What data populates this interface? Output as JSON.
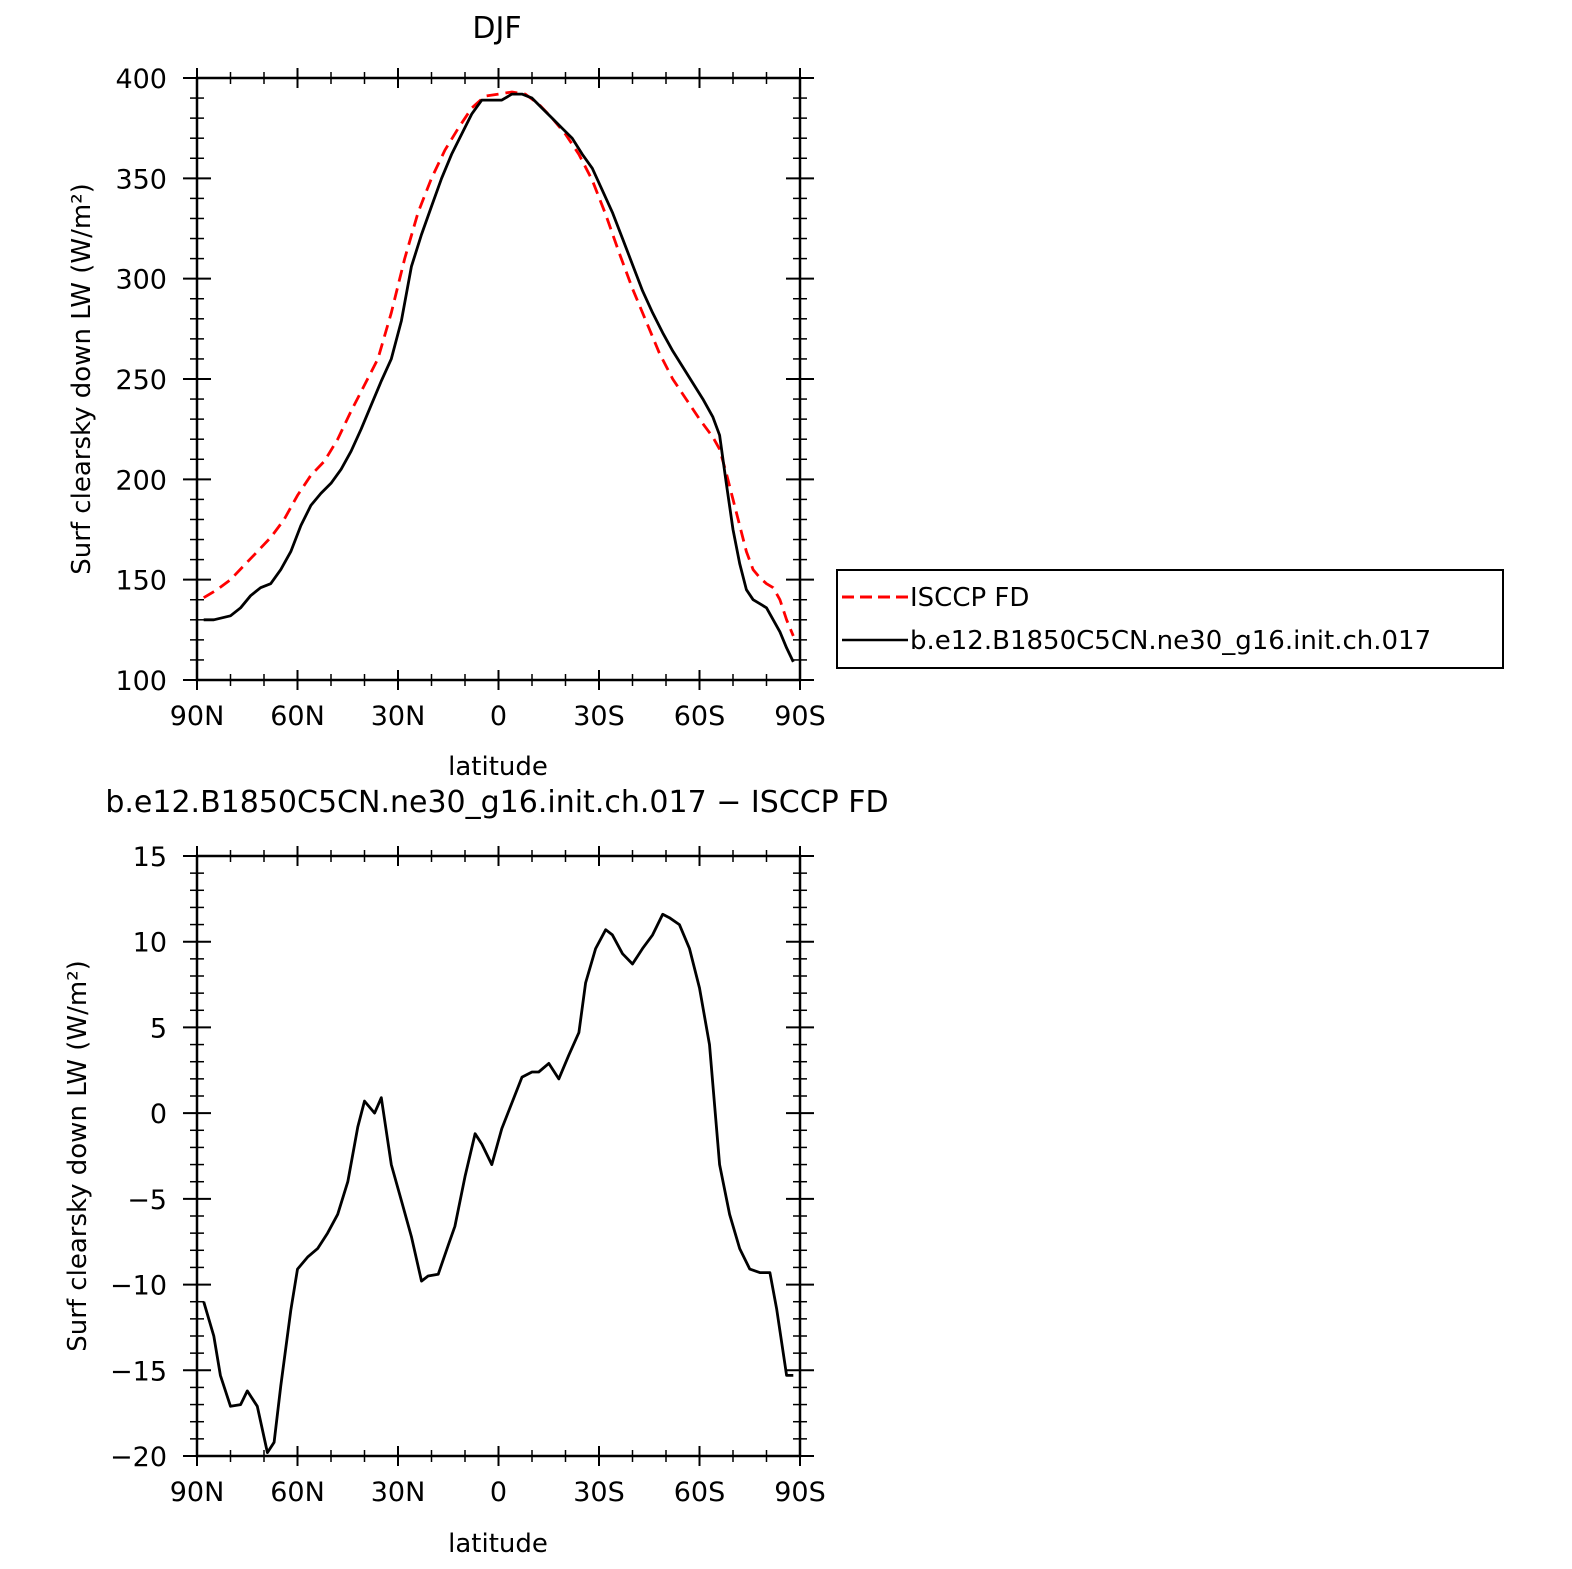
{
  "chart_data": [
    {
      "type": "line",
      "title": "DJF",
      "xlabel": "latitude",
      "ylabel": "Surf clearsky down LW (W/m²)",
      "xlim": [
        90,
        -90
      ],
      "ylim": [
        100,
        400
      ],
      "x_tick_labels": [
        "90N",
        "60N",
        "30N",
        "0",
        "30S",
        "60S",
        "90S"
      ],
      "x_ticks": [
        90,
        60,
        30,
        0,
        -30,
        -60,
        -90
      ],
      "y_ticks": [
        100,
        150,
        200,
        250,
        300,
        350,
        400
      ],
      "y_tick_labels": [
        "100",
        "150",
        "200",
        "250",
        "300",
        "350",
        "400"
      ],
      "grid": false,
      "legend_position": "right",
      "series": [
        {
          "name": "ISCCP FD",
          "color": "#ff0000",
          "style": "dashed",
          "x": [
            88,
            84,
            80,
            76,
            72,
            68,
            64,
            60,
            56,
            52,
            48,
            44,
            40,
            36,
            32,
            28,
            24,
            20,
            16,
            12,
            8,
            4,
            0,
            -4,
            -8,
            -12,
            -16,
            -20,
            -24,
            -28,
            -32,
            -36,
            -40,
            -44,
            -48,
            -52,
            -56,
            -60,
            -64,
            -66,
            -68,
            -70,
            -72,
            -74,
            -76,
            -78,
            -80,
            -82,
            -84,
            -86,
            -88
          ],
          "values": [
            141,
            145,
            150,
            157,
            164,
            171,
            180,
            192,
            202,
            209,
            220,
            234,
            247,
            260,
            283,
            310,
            333,
            350,
            364,
            375,
            385,
            391,
            392,
            393,
            392,
            387,
            380,
            372,
            362,
            349,
            332,
            313,
            295,
            279,
            263,
            250,
            240,
            230,
            221,
            215,
            203,
            190,
            177,
            164,
            155,
            151,
            148,
            146,
            140,
            130,
            122
          ]
        },
        {
          "name": "b.e12.B1850C5CN.ne30_g16.init.ch.017",
          "color": "#000000",
          "style": "solid",
          "x": [
            88,
            85,
            80,
            77,
            74,
            71,
            68,
            65,
            62,
            59,
            56,
            53,
            50,
            47,
            44,
            41,
            38,
            35,
            32,
            29,
            26,
            23,
            20,
            17,
            14,
            11,
            8,
            5,
            2,
            -1,
            -4,
            -7,
            -10,
            -13,
            -16,
            -19,
            -22,
            -25,
            -28,
            -31,
            -34,
            -37,
            -40,
            -43,
            -46,
            -49,
            -52,
            -55,
            -58,
            -61,
            -64,
            -66,
            -68,
            -70,
            -72,
            -74,
            -76,
            -78,
            -80,
            -82,
            -84,
            -86,
            -88
          ],
          "values": [
            130,
            130,
            132,
            136,
            142,
            146,
            148,
            155,
            164,
            177,
            187,
            193,
            198,
            205,
            214,
            225,
            237,
            249,
            260,
            279,
            306,
            322,
            336,
            350,
            362,
            372,
            382,
            389,
            389,
            389,
            392,
            392,
            390,
            385,
            380,
            375,
            370,
            362,
            355,
            344,
            333,
            320,
            307,
            294,
            283,
            273,
            264,
            256,
            248,
            240,
            231,
            222,
            198,
            175,
            158,
            145,
            140,
            138,
            136,
            130,
            124,
            116,
            109
          ]
        }
      ]
    },
    {
      "type": "line",
      "title": "b.e12.B1850C5CN.ne30_g16.init.ch.017 − ISCCP FD",
      "xlabel": "latitude",
      "ylabel": "Surf clearsky down LW (W/m²)",
      "xlim": [
        90,
        -90
      ],
      "ylim": [
        -20,
        15
      ],
      "x_tick_labels": [
        "90N",
        "60N",
        "30N",
        "0",
        "30S",
        "60S",
        "90S"
      ],
      "x_ticks": [
        90,
        60,
        30,
        0,
        -30,
        -60,
        -90
      ],
      "y_ticks": [
        -20,
        -15,
        -10,
        -5,
        0,
        5,
        10,
        15
      ],
      "y_tick_labels": [
        "−20",
        "−15",
        "−10",
        "−5",
        "0",
        "5",
        "10",
        "15"
      ],
      "grid": false,
      "series": [
        {
          "name": "b.e12.B1850C5CN.ne30_g16.init.ch.017 − ISCCP FD",
          "color": "#000000",
          "style": "solid",
          "x": [
            88,
            85,
            83,
            80,
            77,
            75,
            72,
            69,
            67,
            65,
            62,
            60,
            57,
            54,
            51,
            48,
            45,
            42,
            40,
            37,
            35,
            32,
            29,
            26,
            23,
            21,
            18,
            15,
            13,
            10,
            7,
            5,
            2,
            -1,
            -4,
            -7,
            -10,
            -12,
            -15,
            -18,
            -21,
            -24,
            -26,
            -29,
            -32,
            -34,
            -37,
            -40,
            -43,
            -46,
            -49,
            -51,
            -54,
            -57,
            -60,
            -63,
            -66,
            -69,
            -72,
            -75,
            -78,
            -81,
            -83,
            -86,
            -88
          ],
          "values": [
            -11,
            -13,
            -15.3,
            -17.1,
            -17,
            -16.2,
            -17.1,
            -19.8,
            -19.2,
            -15.9,
            -11.5,
            -9.1,
            -8.4,
            -7.9,
            -7,
            -5.9,
            -4,
            -0.8,
            0.7,
            0,
            0.9,
            -3,
            -5.1,
            -7.2,
            -9.8,
            -9.5,
            -9.4,
            -7.7,
            -6.6,
            -3.7,
            -1.2,
            -1.8,
            -3,
            -0.9,
            0.6,
            2.1,
            2.4,
            2.4,
            2.9,
            2,
            3.4,
            4.7,
            7.6,
            9.6,
            10.7,
            10.4,
            9.3,
            8.7,
            9.6,
            10.4,
            11.6,
            11.4,
            11,
            9.6,
            7.3,
            4,
            -3,
            -5.9,
            -7.9,
            -9.1,
            -9.3,
            -9.3,
            -11.4,
            -15.3,
            -15.3
          ]
        }
      ]
    }
  ]
}
